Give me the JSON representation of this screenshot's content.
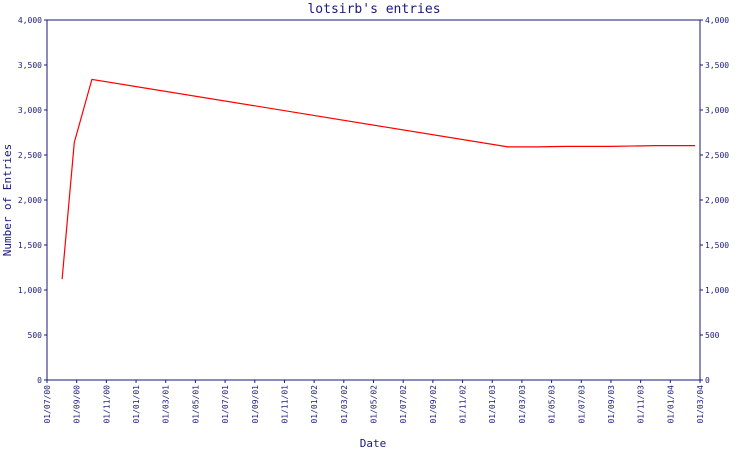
{
  "chart_data": {
    "type": "line",
    "title": "lotsirb's entries",
    "xlabel": "Date",
    "ylabel": "Number of Entries",
    "ylim": [
      0,
      4000
    ],
    "yticks": [
      0,
      500,
      1000,
      1500,
      2000,
      2500,
      3000,
      3500,
      4000
    ],
    "ytick_labels": [
      "0",
      "500",
      "1,000",
      "1,500",
      "2,000",
      "2,500",
      "3,000",
      "3,500",
      "4,000"
    ],
    "xlim": [
      "2000-07-01",
      "2004-03-01"
    ],
    "xtick_labels": [
      "01/07/00",
      "01/09/00",
      "01/11/00",
      "01/01/01",
      "01/03/01",
      "01/05/01",
      "01/07/01",
      "01/09/01",
      "01/11/01",
      "01/01/02",
      "01/03/02",
      "01/05/02",
      "01/07/02",
      "01/09/02",
      "01/11/02",
      "01/01/03",
      "01/03/03",
      "01/05/03",
      "01/07/03",
      "01/09/03",
      "01/11/03",
      "01/01/04",
      "01/03/04"
    ],
    "right_axis": true,
    "grid": false,
    "legend": "none",
    "colors": {
      "axis": "#1a1a7a",
      "series": "#ff0000"
    },
    "series": [
      {
        "x": [
          "2000-08-01",
          "2000-08-26",
          "2000-10-01",
          "2003-02-01",
          "2003-04-01",
          "2003-06-01",
          "2003-09-01",
          "2003-12-01",
          "2004-02-20"
        ],
        "y": [
          1120,
          2640,
          3340,
          2590,
          2590,
          2595,
          2595,
          2605,
          2605
        ]
      }
    ]
  }
}
